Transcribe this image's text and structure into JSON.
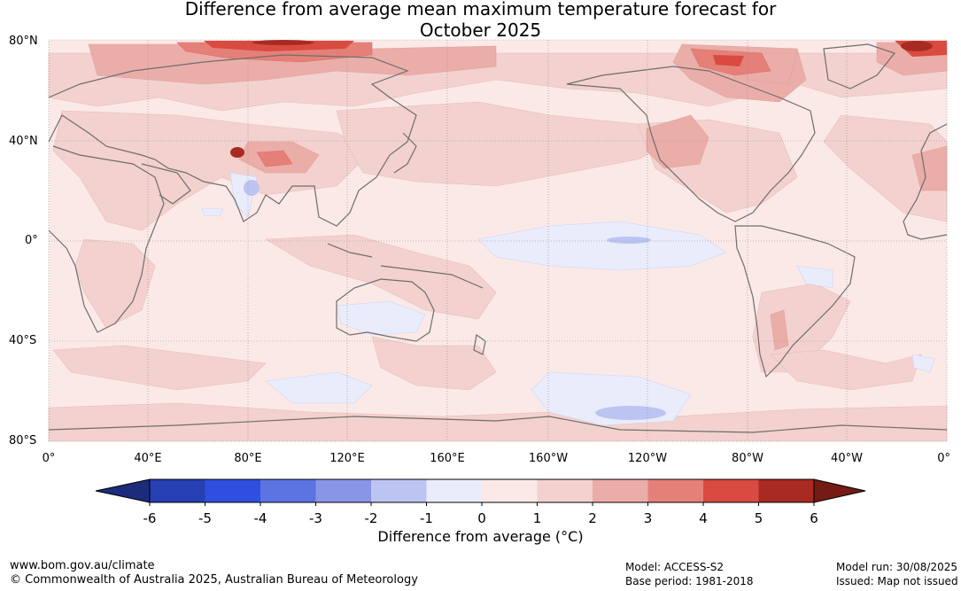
{
  "title_line1": "Difference from average mean maximum temperature forecast for",
  "title_line2": "October 2025",
  "lat_labels": [
    "80°N",
    "40°N",
    "0°",
    "40°S",
    "80°S"
  ],
  "lon_labels": [
    "0°",
    "40°E",
    "80°E",
    "120°E",
    "160°E",
    "160°W",
    "120°W",
    "80°W",
    "40°W",
    "0°"
  ],
  "colorbar": {
    "title": "Difference from average (°C)",
    "ticks": [
      "-6",
      "-5",
      "-4",
      "-3",
      "-2",
      "-1",
      "0",
      "1",
      "2",
      "3",
      "4",
      "5",
      "6"
    ],
    "colors": [
      "#1c2b7a",
      "#2640b3",
      "#2f4fe0",
      "#5c73e2",
      "#8896e8",
      "#bcc4f2",
      "#e9ecfb",
      "#fbe9e8",
      "#f3d1ce",
      "#ebada8",
      "#e58078",
      "#d94a40",
      "#a82a22",
      "#751b16"
    ]
  },
  "footer": {
    "website": "www.bom.gov.au/climate",
    "copyright": "© Commonwealth of Australia 2025, Australian Bureau of Meteorology",
    "model": "Model: ACCESS-S2",
    "base_period": "Base period: 1981-2018",
    "model_run": "Model run: 30/08/2025",
    "issued": "Issued: Map not issued"
  }
}
